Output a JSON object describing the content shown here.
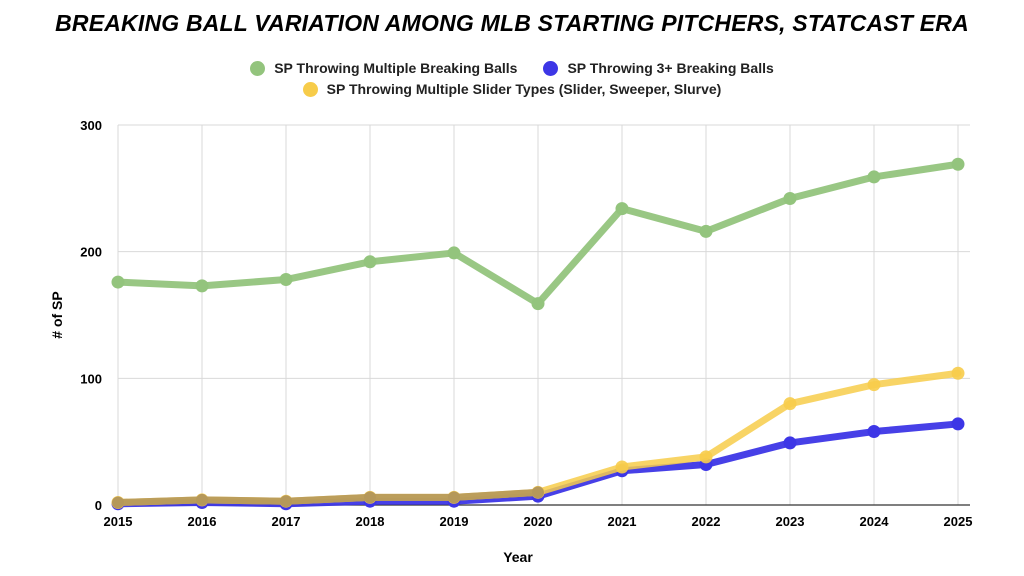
{
  "chart_data": {
    "type": "line",
    "title": "BREAKING BALL VARIATION AMONG MLB STARTING PITCHERS, STATCAST ERA",
    "xlabel": "Year",
    "ylabel": "# of SP",
    "ylim": [
      0,
      300
    ],
    "yticks": [
      0,
      100,
      200,
      300
    ],
    "x": [
      "2015",
      "2016",
      "2017",
      "2018",
      "2019",
      "2020",
      "2021",
      "2022",
      "2023",
      "2024",
      "2025"
    ],
    "grid": true,
    "legend_position": "top",
    "series": [
      {
        "name": "SP Throwing Multiple Breaking Balls",
        "color": "#93c47d",
        "values": [
          176,
          173,
          178,
          192,
          199,
          159,
          234,
          216,
          242,
          259,
          269
        ]
      },
      {
        "name": "SP Throwing 3+ Breaking Balls",
        "color": "#3d36e6",
        "values": [
          1,
          2,
          1,
          3,
          3,
          7,
          27,
          32,
          49,
          58,
          64
        ]
      },
      {
        "name": "SP Throwing Multiple Slider Types (Slider, Sweeper, Slurve)",
        "color": "#f7cc4a",
        "values": [
          2,
          4,
          3,
          6,
          6,
          10,
          30,
          38,
          80,
          95,
          104
        ]
      }
    ]
  }
}
